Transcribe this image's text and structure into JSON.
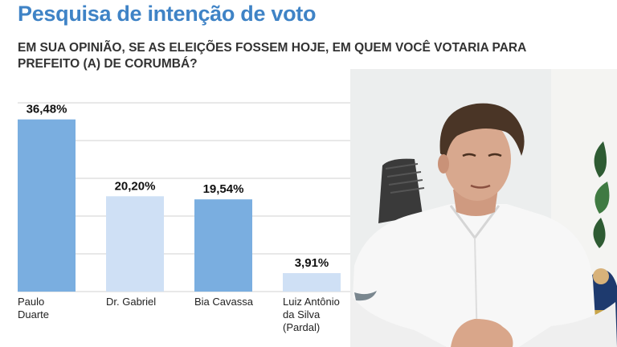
{
  "header": {
    "title": "Pesquisa de intenção de voto",
    "question": "EM SUA OPINIÃO, SE AS ELEIÇÕES FOSSEM HOJE, EM QUEM VOCÊ VOTARIA PARA PREFEITO (A) DE CORUMBÁ?"
  },
  "chart_data": {
    "type": "bar",
    "title": "",
    "xlabel": "",
    "ylabel": "",
    "ylim": [
      0,
      40
    ],
    "grid": true,
    "categories": [
      "Paulo\nDuarte",
      "Dr. Gabriel",
      "Bia Cavassa",
      "Luiz Antônio\nda Silva\n(Pardal)"
    ],
    "values": [
      36.48,
      20.2,
      19.54,
      3.91
    ],
    "value_labels": [
      "36,48%",
      "20,20%",
      "19,54%",
      "3,91%"
    ],
    "colors": [
      "#7aaee0",
      "#cfe0f5",
      "#7aaee0",
      "#cfe0f5"
    ]
  },
  "photo": {
    "description_icon": "candidate-photo"
  }
}
